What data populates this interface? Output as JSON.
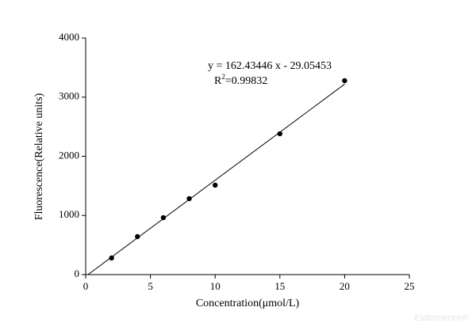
{
  "chart_data": {
    "type": "scatter",
    "x_label": "Concentration(μmol/L)",
    "y_label": "Fluorescence(Relative units)",
    "x": [
      2,
      4,
      6,
      8,
      10,
      15,
      20
    ],
    "values": [
      281,
      642,
      963,
      1284,
      1512,
      2381,
      3278
    ],
    "color": "#000000",
    "xlim": [
      0,
      25
    ],
    "xticks": [
      0,
      5,
      10,
      15,
      20,
      25
    ],
    "ylim": [
      0,
      4000
    ],
    "yticks": [
      0,
      1000,
      2000,
      3000,
      4000
    ],
    "grid": false,
    "fit": {
      "slope": 162.43446,
      "intercept": -29.05453
    },
    "equation": "y = 162.43446 x - 29.05453",
    "r_squared": {
      "base": "R",
      "sup": "2",
      "rest": "=0.99832"
    },
    "watermark": "Elabscience®"
  }
}
